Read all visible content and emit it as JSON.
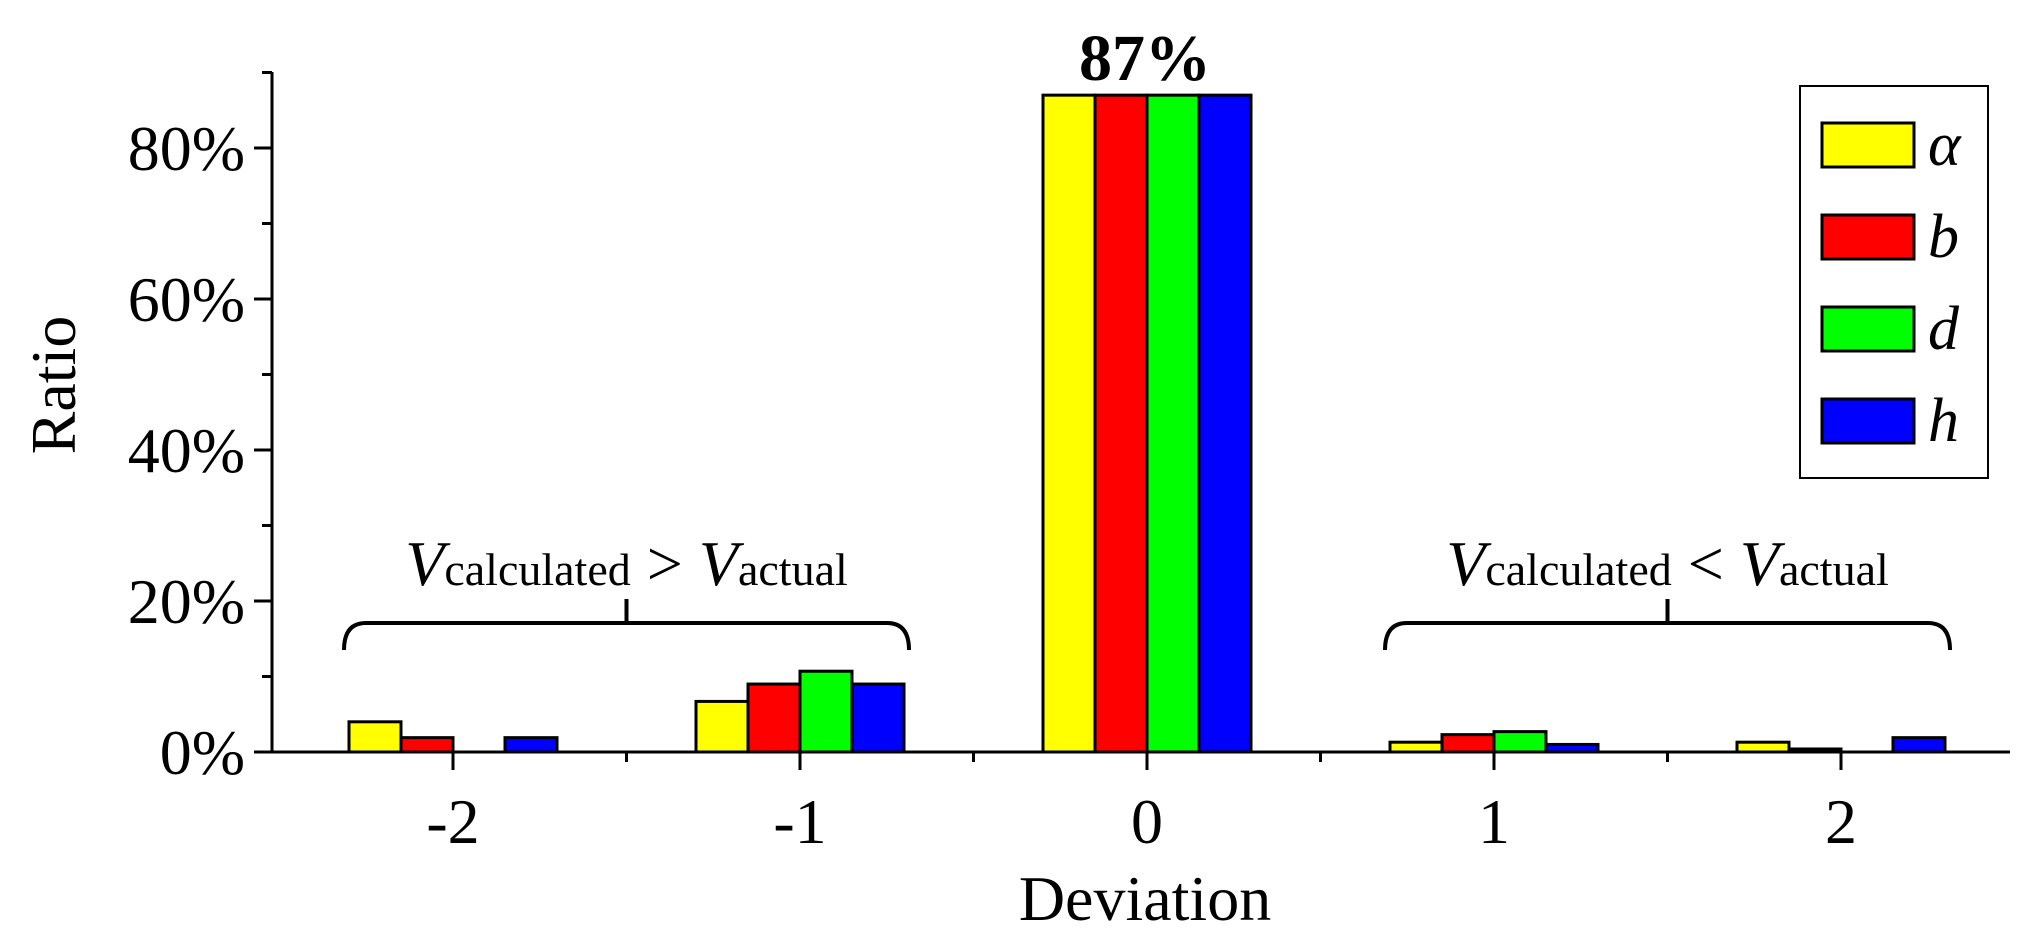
{
  "chart_data": {
    "type": "bar",
    "categories": [
      "-2",
      "-1",
      "0",
      "1",
      "2"
    ],
    "series": [
      {
        "name": "α",
        "color": "#ffff00",
        "values": [
          4.0,
          6.7,
          87,
          1.3,
          1.3
        ]
      },
      {
        "name": "b",
        "color": "#ff0000",
        "values": [
          1.9,
          9.0,
          87,
          2.3,
          0.4
        ]
      },
      {
        "name": "d",
        "color": "#00ff00",
        "values": [
          0.0,
          10.7,
          87,
          2.7,
          0.0
        ]
      },
      {
        "name": "h",
        "color": "#0000ff",
        "values": [
          1.9,
          9.0,
          87,
          1.0,
          1.9
        ]
      }
    ],
    "xlabel": "Deviation",
    "ylabel": "Ratio",
    "ylim": [
      0,
      90
    ],
    "yticks": [
      {
        "value": 0,
        "label": "0%"
      },
      {
        "value": 20,
        "label": "20%"
      },
      {
        "value": 40,
        "label": "40%"
      },
      {
        "value": 60,
        "label": "60%"
      },
      {
        "value": 80,
        "label": "80%"
      }
    ],
    "legend_position": "top-right",
    "peak_label": "87%",
    "annotations": [
      {
        "span": [
          "-2",
          "-1"
        ],
        "symbol": "V",
        "sub_left": "calculated",
        "relation": ">",
        "sub_right": "actual"
      },
      {
        "span": [
          "1",
          "2"
        ],
        "symbol": "V",
        "sub_left": "calculated",
        "relation": "<",
        "sub_right": "actual"
      }
    ]
  }
}
